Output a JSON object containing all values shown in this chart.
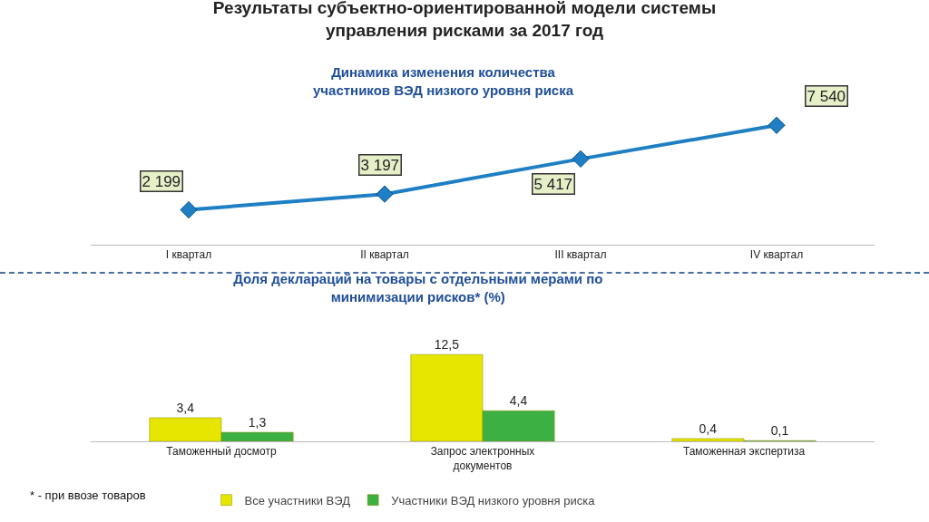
{
  "chart_data": [
    {
      "type": "line",
      "title": "Результаты субъектно-ориентированной модели системы управления рисками за 2017 год",
      "subtitle": "Динамика изменения количества участников ВЭД низкого уровня риска",
      "categories": [
        "I квартал",
        "II квартал",
        "III квартал",
        "IV квартал"
      ],
      "values": [
        2199,
        3197,
        5417,
        7540
      ],
      "value_labels": [
        "2 199",
        "3 197",
        "5 417",
        "7 540"
      ],
      "color": "#1f7fc4",
      "marker": "diamond",
      "line_style": "solid",
      "tick_labels": "x"
    },
    {
      "type": "bar",
      "title": "Доля деклараций на товары с отдельными мерами по минимизации рисков* (%)",
      "categories": [
        "Таможенный досмотр",
        "Запрос электронных документов",
        "Таможенная экспертиза"
      ],
      "series": [
        {
          "name": "Все участники ВЭД",
          "color": "#e6e600",
          "values": [
            3.4,
            12.5,
            0.4
          ],
          "value_labels": [
            "3,4",
            "12,5",
            "0,4"
          ]
        },
        {
          "name": "Участники ВЭД низкого уровня риска",
          "color": "#3cb043",
          "values": [
            1.3,
            4.4,
            0.1
          ],
          "value_labels": [
            "1,3",
            "4,4",
            "0,1"
          ]
        }
      ],
      "legend": "bottom",
      "tick_labels": "x",
      "annotations": [
        "* - при ввозе товаров"
      ]
    }
  ]
}
